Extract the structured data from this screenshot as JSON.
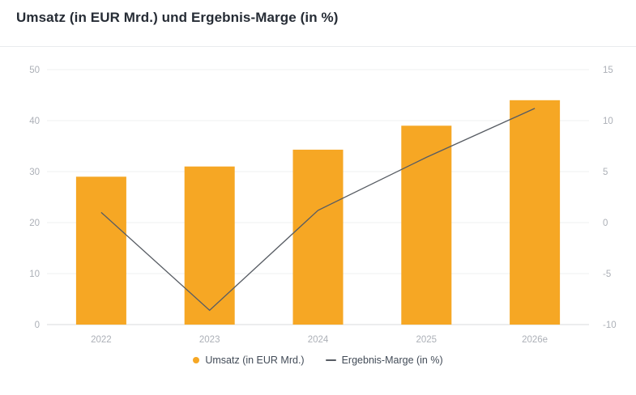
{
  "page": {
    "title": "Umsatz (in EUR Mrd.) und Ergebnis-Marge (in %)"
  },
  "chart_data": {
    "type": "combo",
    "title": "Umsatz (in EUR Mrd.) und Ergebnis-Marge (in %)",
    "categories": [
      "2022",
      "2023",
      "2024",
      "2025",
      "2026e"
    ],
    "series": [
      {
        "name": "Umsatz (in EUR Mrd.)",
        "type": "bar",
        "axis": "left",
        "values": [
          29,
          31,
          34.3,
          39,
          44
        ],
        "color": "#F6A724"
      },
      {
        "name": "Ergebnis-Marge (in %)",
        "type": "line",
        "axis": "right",
        "values": [
          1.0,
          -8.6,
          1.2,
          6.4,
          11.2
        ],
        "color": "#575C63"
      }
    ],
    "left_axis": {
      "range": [
        0,
        50
      ],
      "ticks": [
        0,
        10,
        20,
        30,
        40,
        50
      ]
    },
    "right_axis": {
      "range": [
        -10,
        15
      ],
      "ticks": [
        -10,
        -5,
        0,
        5,
        10,
        15
      ]
    },
    "grid": true,
    "legend_position": "bottom"
  },
  "legend": {
    "items": [
      {
        "label": "Umsatz (in EUR Mrd.)",
        "marker": "dot",
        "color": "#F6A724"
      },
      {
        "label": "Ergebnis-Marge (in %)",
        "marker": "dash",
        "color": "#575C63"
      }
    ]
  },
  "colors": {
    "background": "#FFFFFF",
    "title_text": "#262C35",
    "divider": "#E9EBEE",
    "grid_line": "#EFF0F2",
    "axis_line": "#D9DBDE",
    "tick_text": "#ACB0B7",
    "legend_text": "#424B57",
    "bar": "#F6A724",
    "line": "#575C63"
  }
}
